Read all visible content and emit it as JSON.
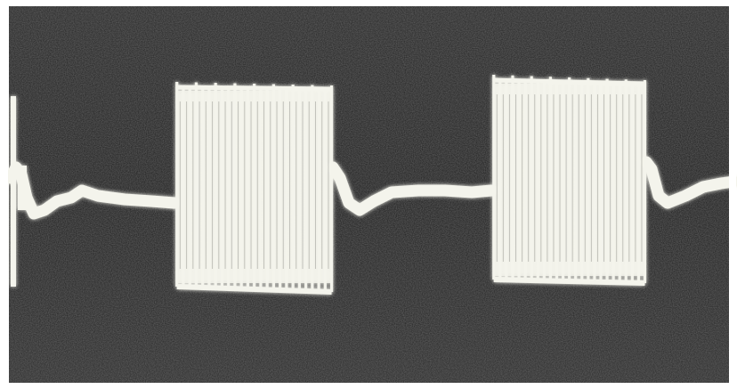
{
  "photo": {
    "subject": "oscilloscope-trace",
    "background_color": "#1e1e1e",
    "trace_color": "#f4f4ec",
    "border_color": "#ffffff",
    "burst_count": 2,
    "bursts": [
      {
        "start_fraction": 0.24,
        "end_fraction": 0.45
      },
      {
        "start_fraction": 0.67,
        "end_fraction": 0.875
      }
    ]
  }
}
